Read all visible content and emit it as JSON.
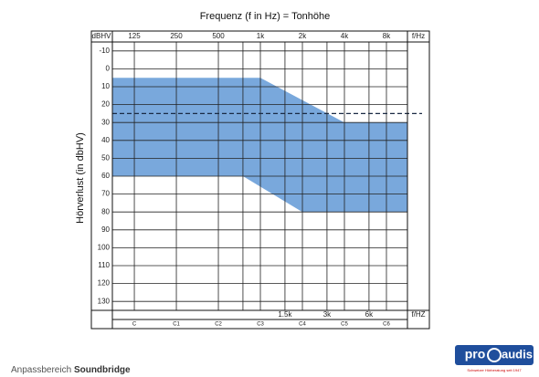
{
  "chart_data": {
    "type": "audiogram",
    "title": "Frequenz (f in Hz) = Tonhöhe",
    "y_label": "Hörverlust (in dbHV)",
    "y_unit_label": "dBHV",
    "x_unit_label_top": "f/Hz",
    "x_unit_label_bottom": "f/HZ",
    "log_x": true,
    "xlim": [
      87,
      11314
    ],
    "ylim": [
      -15,
      135
    ],
    "yticks": [
      -10,
      0,
      10,
      20,
      30,
      40,
      50,
      60,
      70,
      80,
      90,
      100,
      110,
      120,
      130
    ],
    "xticks": [
      125,
      250,
      500,
      {
        "value": 1000,
        "label": "1k"
      },
      {
        "value": 2000,
        "label": "2k"
      },
      {
        "value": 4000,
        "label": "4k"
      },
      {
        "value": 8000,
        "label": "8k"
      }
    ],
    "xticks_bottom": [
      {
        "value": 1500,
        "label": "1.5k"
      },
      {
        "value": 3000,
        "label": "3k"
      },
      {
        "value": 6000,
        "label": "6k"
      }
    ],
    "xgrid": [
      750
    ],
    "notes": [
      "C",
      "C1",
      "C2",
      "C3",
      "C4",
      "C5",
      "C6"
    ],
    "band": {
      "color": "#6a9fd8",
      "upper_x": [
        125,
        1000,
        4000,
        8000
      ],
      "upper_values": [
        5,
        5,
        30,
        30
      ],
      "lower_x": [
        125,
        750,
        2000,
        8000
      ],
      "lower_values": [
        60,
        60,
        80,
        80
      ]
    },
    "reference_line": 25,
    "footer_label": "Anpassbereich",
    "footer_product": "Soundbridge",
    "logo": {
      "part1": "pro",
      "part2": "audis",
      "tagline": "Schweizer Hörberatung seit 1947"
    }
  }
}
